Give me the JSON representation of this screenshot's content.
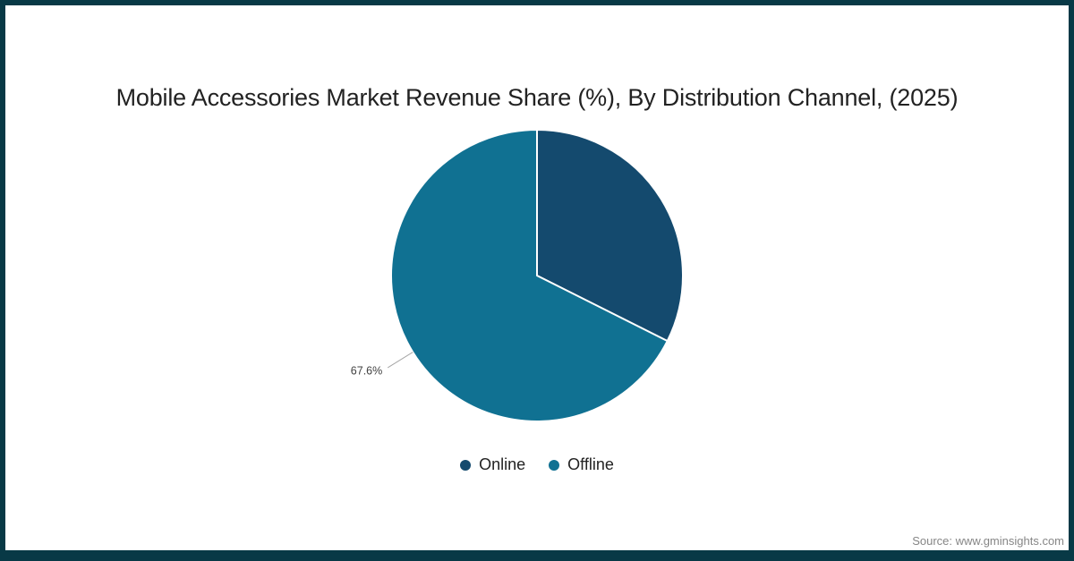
{
  "frame": {
    "border_color": "#083946",
    "background": "#ffffff"
  },
  "chart_data": {
    "type": "pie",
    "title": "Mobile Accessories Market Revenue Share (%), By Distribution Channel, (2025)",
    "series": [
      {
        "name": "Online",
        "value": 32.4,
        "color": "#144a6e",
        "label": ""
      },
      {
        "name": "Offline",
        "value": 67.6,
        "color": "#107192",
        "label": "67.6%"
      }
    ],
    "start_angle_deg": 0,
    "direction": "clockwise",
    "slice_border_color": "#ffffff",
    "label_color": "#404040",
    "connector_color": "#a6a6a6",
    "legend_position": "bottom-center",
    "legend": [
      "Online",
      "Offline"
    ]
  },
  "footer": {
    "source_text": "Source: www.gminsights.com"
  }
}
